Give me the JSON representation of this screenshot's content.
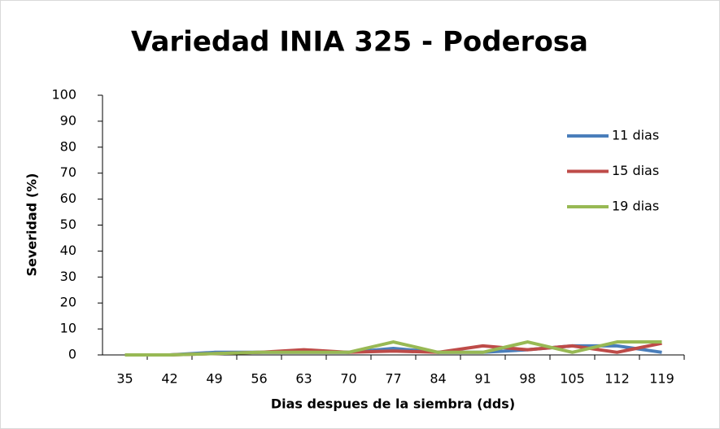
{
  "chart_data": {
    "type": "line",
    "title": "Variedad INIA 325 - Poderosa",
    "x_label": "Dias despues de la siembra (dds)",
    "y_label": "Severidad (%)",
    "categories": [
      "35",
      "42",
      "49",
      "56",
      "63",
      "70",
      "77",
      "84",
      "91",
      "98",
      "105",
      "112",
      "119"
    ],
    "series": [
      {
        "name": "11 dias",
        "color": "#4a7ebb",
        "values": [
          0,
          0,
          1,
          1,
          1,
          1,
          2.5,
          1,
          1,
          2,
          3.5,
          3.5,
          1
        ]
      },
      {
        "name": "15 dias",
        "color": "#be4b48",
        "values": [
          0,
          0,
          0.5,
          1,
          2,
          1,
          1.5,
          1,
          3.5,
          2,
          3.5,
          1,
          4.5
        ]
      },
      {
        "name": "19 dias",
        "color": "#98b954",
        "values": [
          0,
          0,
          0.5,
          1,
          1,
          1,
          5,
          1,
          1,
          5,
          1,
          5,
          5
        ]
      }
    ],
    "ylim": [
      0,
      100
    ],
    "yticks": [
      0,
      10,
      20,
      30,
      40,
      50,
      60,
      70,
      80,
      90,
      100
    ],
    "legend": "right",
    "grid": false
  }
}
